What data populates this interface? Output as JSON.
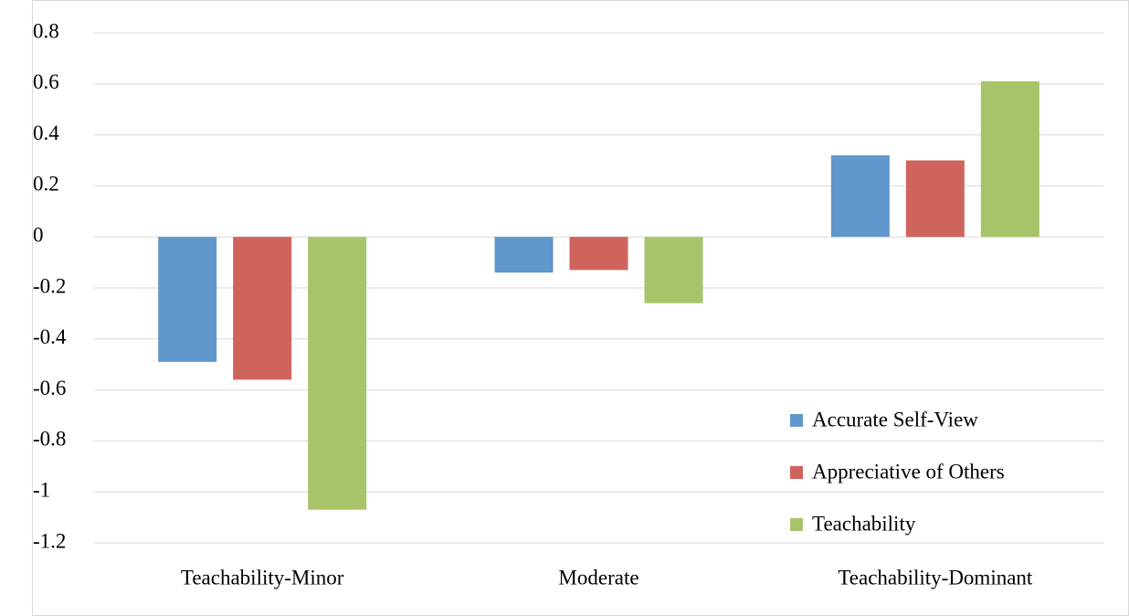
{
  "chart_data": {
    "type": "bar",
    "categories": [
      "Teachability-Minor",
      "Moderate",
      "Teachability-Dominant"
    ],
    "series": [
      {
        "name": "Accurate Self-View",
        "color": "#6097cc",
        "values": [
          -0.49,
          -0.14,
          0.32
        ]
      },
      {
        "name": "Appreciative of Others",
        "color": "#cf645c",
        "values": [
          -0.56,
          -0.13,
          0.3
        ]
      },
      {
        "name": "Teachability",
        "color": "#a8c46a",
        "values": [
          -1.07,
          -0.26,
          0.61
        ]
      }
    ],
    "ylim": [
      -1.2,
      0.8
    ],
    "yticks": [
      -1.2,
      -1,
      -0.8,
      -0.6,
      -0.4,
      -0.2,
      0,
      0.2,
      0.4,
      0.6,
      0.8
    ],
    "grid": true,
    "legend": "lower-right"
  }
}
